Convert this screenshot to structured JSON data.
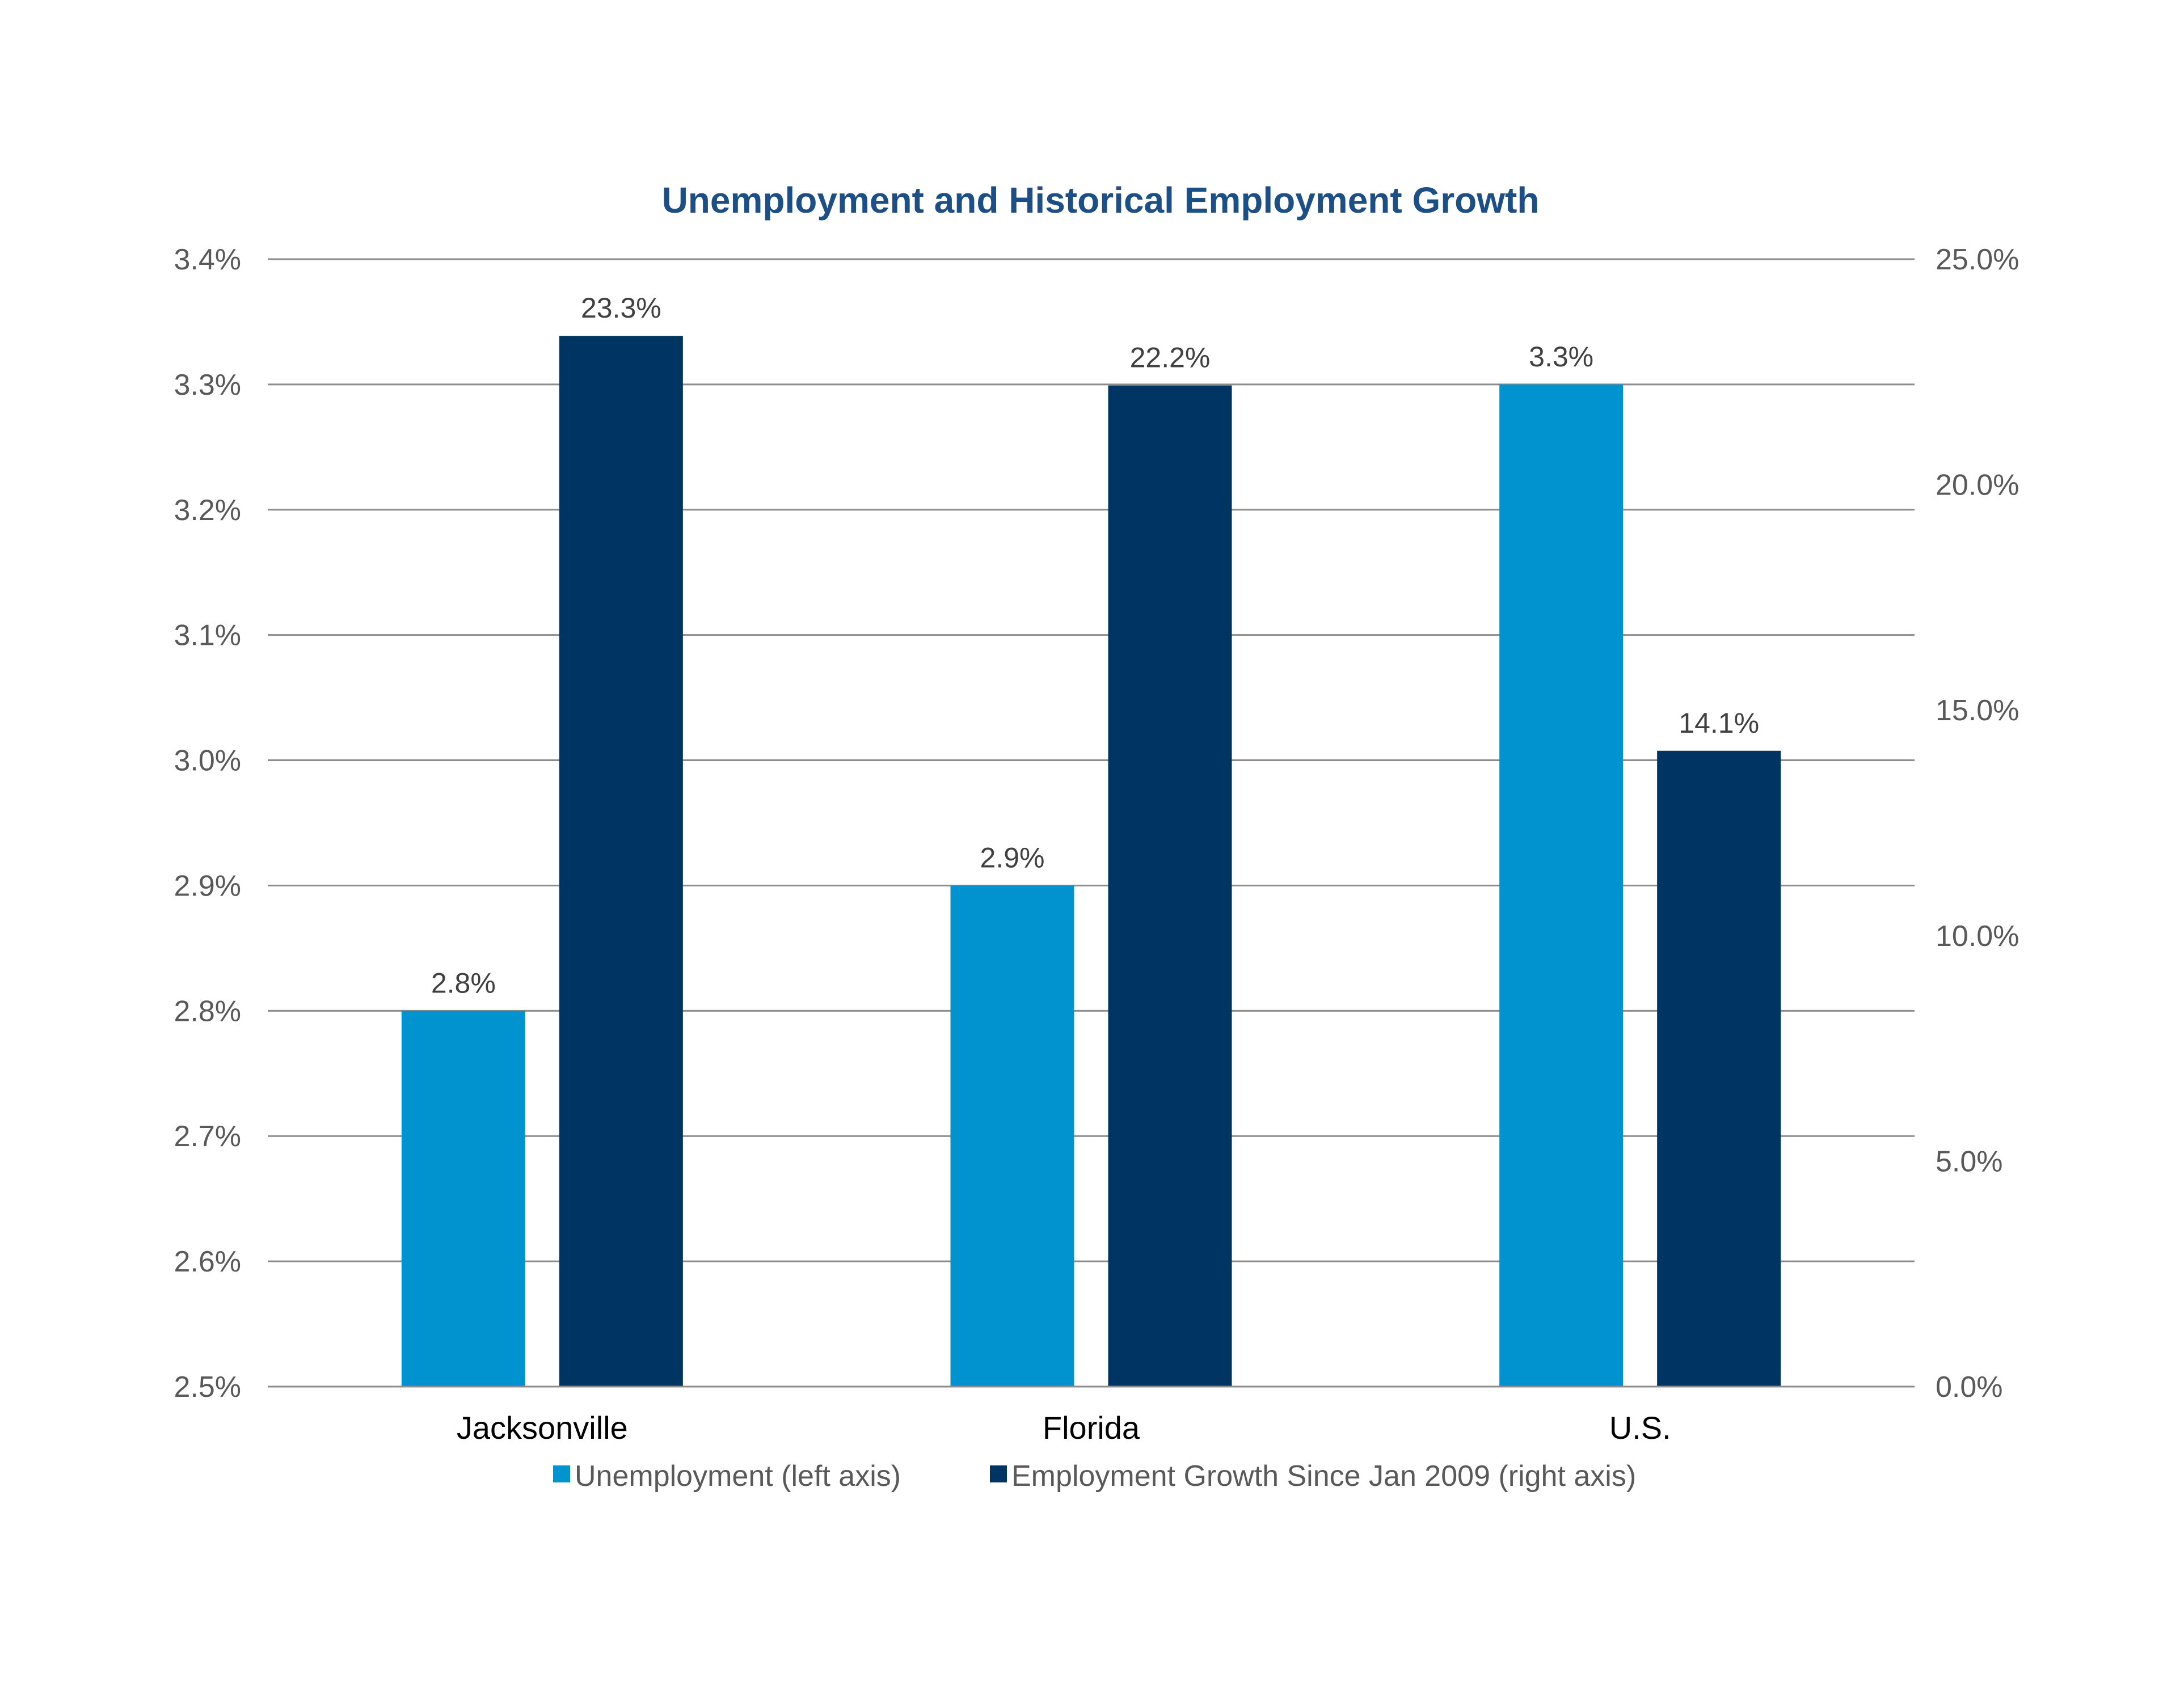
{
  "chart_data": {
    "type": "bar",
    "title": "Unemployment and Historical Employment Growth",
    "categories": [
      "Jacksonville",
      "Florida",
      "U.S."
    ],
    "series": [
      {
        "name": "Unemployment (left axis)",
        "axis": "left",
        "color": "#0093D0",
        "values": [
          2.8,
          2.9,
          3.3
        ],
        "labels": [
          "2.8%",
          "2.9%",
          "3.3%"
        ]
      },
      {
        "name": "Employment Growth Since Jan 2009 (right axis)",
        "axis": "right",
        "color": "#003462",
        "values": [
          23.3,
          22.2,
          14.1
        ],
        "labels": [
          "23.3%",
          "22.2%",
          "14.1%"
        ]
      }
    ],
    "left_axis": {
      "range": [
        2.5,
        3.4
      ],
      "ticks": [
        2.5,
        2.6,
        2.7,
        2.8,
        2.9,
        3.0,
        3.1,
        3.2,
        3.3,
        3.4
      ],
      "tick_labels": [
        "2.5%",
        "2.6%",
        "2.7%",
        "2.8%",
        "2.9%",
        "3.0%",
        "3.1%",
        "3.2%",
        "3.3%",
        "3.4%"
      ]
    },
    "right_axis": {
      "range": [
        0,
        25
      ],
      "ticks": [
        0,
        5,
        10,
        15,
        20,
        25
      ],
      "tick_labels": [
        "0.0%",
        "5.0%",
        "10.0%",
        "15.0%",
        "20.0%",
        "25.0%"
      ]
    },
    "grid": true,
    "legend_position": "bottom",
    "colors": {
      "title": "#1B4F86",
      "tick_label": "#595959",
      "category_label": "#000000",
      "data_label": "#404040",
      "legend_text": "#595959",
      "gridline": "#8C8C8C"
    }
  }
}
